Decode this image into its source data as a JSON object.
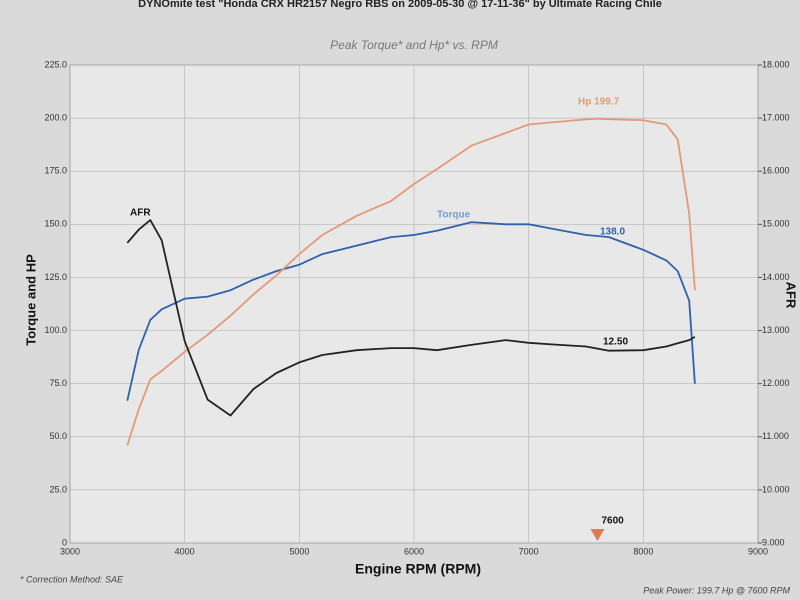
{
  "chart_data": {
    "type": "line",
    "title": "DYNOmite test \"Honda CRX HR2157 Negro RBS on 2009-05-30 @ 17-11-36\" by Ultimate Racing Chile",
    "subtitle": "Peak Torque* and Hp* vs. RPM",
    "x_label": "Engine RPM (RPM)",
    "y_label": "Torque and HP",
    "y2_label": "AFR",
    "x": [
      3500,
      3600,
      3700,
      3800,
      4000,
      4200,
      4400,
      4600,
      4800,
      5000,
      5200,
      5500,
      5800,
      6000,
      6200,
      6500,
      6800,
      7000,
      7200,
      7500,
      7600,
      7700,
      8000,
      8200,
      8300,
      8400,
      8450
    ],
    "series": [
      {
        "name": "Torque",
        "color": "#2d62ad",
        "values": [
          67,
          91,
          105,
          110,
          115,
          116,
          119,
          124,
          128,
          131,
          136,
          140,
          144,
          145,
          147,
          151,
          150,
          150,
          148,
          145,
          144.5,
          144,
          138,
          133,
          128,
          114,
          75
        ]
      },
      {
        "name": "Hp",
        "color": "#e39a78",
        "values": [
          46,
          63,
          77,
          81,
          90,
          98,
          107,
          117,
          126,
          136,
          145,
          154,
          161,
          169,
          176,
          187,
          193,
          197,
          198,
          199.4,
          199.7,
          199.5,
          199,
          197,
          190,
          155,
          119
        ]
      },
      {
        "name": "AFR",
        "color": "#222222",
        "axis": "y2",
        "values": [
          14.65,
          14.9,
          15.08,
          14.7,
          12.8,
          11.7,
          11.4,
          11.9,
          12.2,
          12.4,
          12.54,
          12.63,
          12.67,
          12.67,
          12.63,
          12.73,
          12.82,
          12.77,
          12.74,
          12.7,
          12.66,
          12.62,
          12.63,
          12.7,
          12.76,
          12.82,
          12.88
        ]
      }
    ],
    "xlim": [
      3000,
      9000
    ],
    "xticks": [
      3000,
      4000,
      5000,
      6000,
      7000,
      8000,
      9000
    ],
    "ylim": [
      0,
      225
    ],
    "yticks": [
      0,
      {
        "value": 25,
        "label": "25.0"
      },
      {
        "value": 50,
        "label": "50.0"
      },
      {
        "value": 75,
        "label": "75.0"
      },
      {
        "value": 100,
        "label": "100.0"
      },
      {
        "value": 125,
        "label": "125.0"
      },
      {
        "value": 150,
        "label": "150.0"
      },
      {
        "value": 175,
        "label": "175.0"
      },
      {
        "value": 200,
        "label": "200.0"
      },
      {
        "value": 225,
        "label": "225.0"
      }
    ],
    "y2lim": [
      9,
      18
    ],
    "y2ticks": [
      {
        "value": 9,
        "label": "9.000"
      },
      {
        "value": 10,
        "label": "10.000"
      },
      {
        "value": 11,
        "label": "11.000"
      },
      {
        "value": 12,
        "label": "12.000"
      },
      {
        "value": 13,
        "label": "13.000"
      },
      {
        "value": 14,
        "label": "14.000"
      },
      {
        "value": 15,
        "label": "15.000"
      },
      {
        "value": 16,
        "label": "16.000"
      },
      {
        "value": 17,
        "label": "17.000"
      },
      {
        "value": 18,
        "label": "18.000"
      }
    ],
    "grid": true,
    "annotations": [
      "Hp 199.7",
      "Torque",
      "138.0",
      "AFR",
      "12.50"
    ],
    "peak_marker": 7600,
    "footnote_left": "* Correction Method: SAE",
    "footnote_right": "Peak Power: 199.7 Hp @ 7600 RPM"
  }
}
